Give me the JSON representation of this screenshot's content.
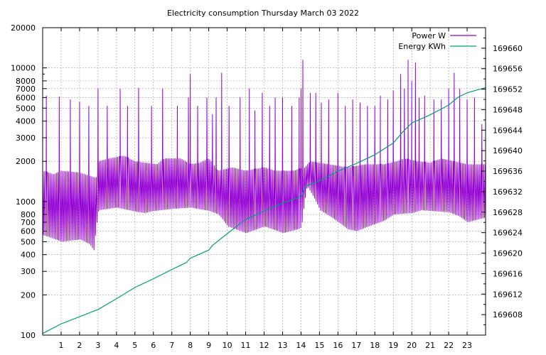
{
  "chart_data": {
    "type": "line",
    "title": "Electricity consumption Thursday March 03 2022",
    "x": {
      "min": 0,
      "max": 24,
      "ticks": [
        1,
        2,
        3,
        4,
        5,
        6,
        7,
        8,
        9,
        10,
        11,
        12,
        13,
        14,
        15,
        16,
        17,
        18,
        19,
        20,
        21,
        22,
        23
      ],
      "tick_labels": [
        "1",
        "2",
        "3",
        "4",
        "5",
        "6",
        "7",
        "8",
        "9",
        "10",
        "11",
        "12",
        "13",
        "14",
        "15",
        "16",
        "17",
        "18",
        "19",
        "20",
        "21",
        "22",
        "23"
      ]
    },
    "y_left": {
      "scale": "log",
      "min": 100,
      "max": 20000,
      "ticks": [
        100,
        200,
        300,
        400,
        500,
        600,
        700,
        800,
        1000,
        2000,
        3000,
        4000,
        5000,
        6000,
        7000,
        8000,
        10000,
        20000
      ],
      "tick_labels": [
        "100",
        "200",
        "300",
        "400",
        "500",
        "600",
        "700",
        "800",
        "1000",
        "2000",
        "3000",
        "4000",
        "5000",
        "6000",
        "7000",
        "8000",
        "10000",
        "20000"
      ]
    },
    "y_right": {
      "scale": "linear",
      "min": 169604,
      "max": 169664,
      "ticks": [
        169608,
        169612,
        169616,
        169620,
        169624,
        169628,
        169632,
        169636,
        169640,
        169644,
        169648,
        169652,
        169656,
        169660
      ],
      "tick_labels": [
        "169608",
        "169612",
        "169616",
        "169620",
        "169624",
        "169628",
        "169632",
        "169636",
        "169640",
        "169644",
        "169648",
        "169652",
        "169656",
        "169660"
      ]
    },
    "grid": true,
    "legend_position": "top-right",
    "series": [
      {
        "name": "Power W",
        "axis": "left",
        "color": "#9400d3",
        "style": "spikes",
        "base_levels": [
          [
            0.0,
            1700
          ],
          [
            0.6,
            1600
          ],
          [
            1.0,
            1700
          ],
          [
            2.0,
            1650
          ],
          [
            2.9,
            1500
          ],
          [
            3.0,
            2000
          ],
          [
            3.6,
            2100
          ],
          [
            4.4,
            2200
          ],
          [
            5.0,
            2000
          ],
          [
            6.2,
            1900
          ],
          [
            6.6,
            2100
          ],
          [
            7.5,
            2100
          ],
          [
            8.0,
            1900
          ],
          [
            8.5,
            1950
          ],
          [
            9.0,
            2100
          ],
          [
            9.5,
            1700
          ],
          [
            10.3,
            1800
          ],
          [
            11.0,
            1700
          ],
          [
            12.0,
            1800
          ],
          [
            12.6,
            1700
          ],
          [
            13.6,
            1700
          ],
          [
            14.2,
            1800
          ],
          [
            14.5,
            2000
          ],
          [
            15.5,
            1900
          ],
          [
            16.5,
            1800
          ],
          [
            17.5,
            1900
          ],
          [
            18.5,
            1900
          ],
          [
            19.2,
            2000
          ],
          [
            19.6,
            2100
          ],
          [
            20.3,
            2000
          ],
          [
            21.0,
            1950
          ],
          [
            21.6,
            2100
          ],
          [
            22.3,
            2000
          ],
          [
            23.0,
            1900
          ],
          [
            24.0,
            1900
          ]
        ],
        "low_levels": [
          [
            0.0,
            560
          ],
          [
            1.0,
            500
          ],
          [
            2.0,
            520
          ],
          [
            2.5,
            480
          ],
          [
            2.75,
            430
          ],
          [
            3.0,
            860
          ],
          [
            4.0,
            900
          ],
          [
            5.0,
            840
          ],
          [
            5.5,
            820
          ],
          [
            6.0,
            850
          ],
          [
            7.0,
            880
          ],
          [
            8.0,
            900
          ],
          [
            9.0,
            850
          ],
          [
            9.5,
            800
          ],
          [
            10.0,
            650
          ],
          [
            11.0,
            580
          ],
          [
            12.0,
            650
          ],
          [
            13.0,
            580
          ],
          [
            13.8,
            620
          ],
          [
            14.0,
            640
          ],
          [
            14.3,
            1300
          ],
          [
            15.0,
            860
          ],
          [
            16.0,
            700
          ],
          [
            16.5,
            620
          ],
          [
            17.0,
            600
          ],
          [
            18.0,
            680
          ],
          [
            18.5,
            720
          ],
          [
            19.0,
            800
          ],
          [
            20.0,
            820
          ],
          [
            20.5,
            860
          ],
          [
            21.0,
            850
          ],
          [
            22.0,
            830
          ],
          [
            22.5,
            780
          ],
          [
            23.0,
            700
          ],
          [
            24.0,
            760
          ]
        ],
        "peaks": [
          [
            0.2,
            6200
          ],
          [
            0.9,
            6100
          ],
          [
            1.5,
            5800
          ],
          [
            2.0,
            5600
          ],
          [
            2.5,
            5200
          ],
          [
            3.0,
            7000
          ],
          [
            3.5,
            5200
          ],
          [
            4.2,
            7000
          ],
          [
            4.6,
            5200
          ],
          [
            5.2,
            7100
          ],
          [
            5.9,
            5200
          ],
          [
            6.5,
            7000
          ],
          [
            7.3,
            5200
          ],
          [
            7.9,
            6000
          ],
          [
            8.0,
            9000
          ],
          [
            8.4,
            5200
          ],
          [
            8.9,
            6000
          ],
          [
            9.2,
            4500
          ],
          [
            9.4,
            6000
          ],
          [
            9.7,
            9200
          ],
          [
            10.1,
            5200
          ],
          [
            10.7,
            6000
          ],
          [
            11.2,
            7000
          ],
          [
            11.5,
            4800
          ],
          [
            11.9,
            6500
          ],
          [
            12.3,
            5200
          ],
          [
            12.6,
            6000
          ],
          [
            13.0,
            6000
          ],
          [
            13.5,
            5200
          ],
          [
            13.9,
            6000
          ],
          [
            14.0,
            7000
          ],
          [
            14.1,
            11500
          ],
          [
            14.5,
            6500
          ],
          [
            14.8,
            6500
          ],
          [
            15.1,
            5500
          ],
          [
            15.5,
            5800
          ],
          [
            16.0,
            6500
          ],
          [
            16.4,
            5200
          ],
          [
            16.8,
            5800
          ],
          [
            17.2,
            5500
          ],
          [
            17.6,
            5200
          ],
          [
            18.0,
            5200
          ],
          [
            18.3,
            6200
          ],
          [
            18.7,
            5800
          ],
          [
            19.0,
            6800
          ],
          [
            19.4,
            9000
          ],
          [
            19.6,
            7000
          ],
          [
            19.8,
            11500
          ],
          [
            20.0,
            8000
          ],
          [
            20.2,
            11000
          ],
          [
            20.4,
            6000
          ],
          [
            20.7,
            6200
          ],
          [
            21.2,
            5800
          ],
          [
            21.6,
            5800
          ],
          [
            22.0,
            7000
          ],
          [
            22.3,
            9200
          ],
          [
            22.6,
            7000
          ],
          [
            23.0,
            5800
          ],
          [
            23.4,
            6000
          ],
          [
            23.8,
            3800
          ]
        ],
        "spike_spacing_hours": 0.083
      },
      {
        "name": "Energy KWh",
        "axis": "right",
        "color": "#009e73",
        "style": "line",
        "points": [
          [
            0.0,
            169604.3
          ],
          [
            1.0,
            169606.2
          ],
          [
            2.0,
            169607.6
          ],
          [
            3.0,
            169609.0
          ],
          [
            4.0,
            169611.1
          ],
          [
            5.0,
            169613.3
          ],
          [
            6.0,
            169615.0
          ],
          [
            7.0,
            169616.8
          ],
          [
            7.8,
            169618.2
          ],
          [
            8.0,
            169619.0
          ],
          [
            9.0,
            169620.6
          ],
          [
            9.2,
            169621.5
          ],
          [
            10.0,
            169623.8
          ],
          [
            11.0,
            169626.6
          ],
          [
            12.0,
            169628.2
          ],
          [
            13.0,
            169629.8
          ],
          [
            14.0,
            169631.0
          ],
          [
            14.2,
            169633.0
          ],
          [
            15.0,
            169634.1
          ],
          [
            16.0,
            169636.0
          ],
          [
            17.0,
            169637.5
          ],
          [
            18.0,
            169639.2
          ],
          [
            19.0,
            169641.5
          ],
          [
            19.5,
            169643.6
          ],
          [
            20.0,
            169645.4
          ],
          [
            21.0,
            169647.0
          ],
          [
            22.0,
            169648.9
          ],
          [
            22.5,
            169650.4
          ],
          [
            23.0,
            169651.3
          ],
          [
            24.0,
            169652.3
          ]
        ]
      }
    ]
  }
}
